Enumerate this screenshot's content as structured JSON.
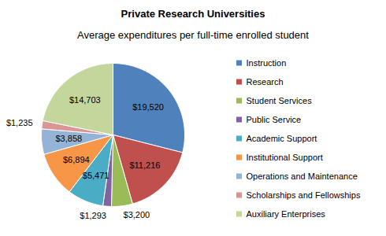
{
  "chart_data": {
    "type": "pie",
    "title": "Private Research Universities",
    "subtitle": "Average expenditures per full-time enrolled student",
    "categories": [
      "Instruction",
      "Research",
      "Student Services",
      "Public Service",
      "Academic Support",
      "Institutional Support",
      "Operations and Maintenance",
      "Scholarships and Fellowships",
      "Auxiliary Enterprises"
    ],
    "values": [
      19520,
      11216,
      3200,
      1293,
      5471,
      6894,
      3858,
      1235,
      14703
    ],
    "value_labels": [
      "$19,520",
      "$11,216",
      "$3,200",
      "$1,293",
      "$5,471",
      "$6,894",
      "$3,858",
      "$1,235",
      "$14,703"
    ],
    "colors": [
      "#4f81bd",
      "#c0504d",
      "#9bbb59",
      "#8064a2",
      "#4bacc6",
      "#f79646",
      "#95b3d7",
      "#d99694",
      "#c3d69b"
    ],
    "data_labels": true,
    "legend": "right"
  }
}
